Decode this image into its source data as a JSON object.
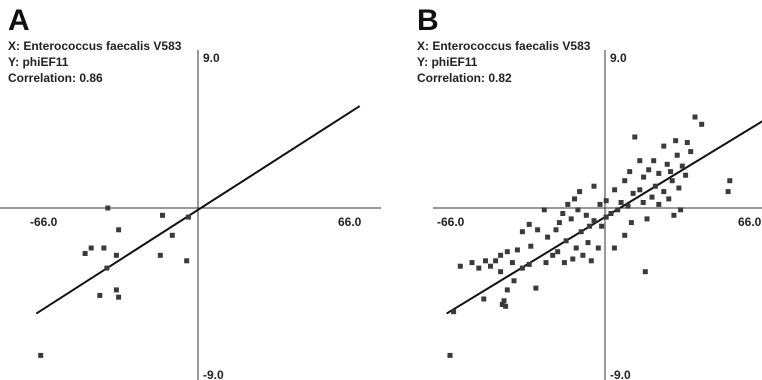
{
  "chart_data": [
    {
      "type": "scatter",
      "panel_label": "A",
      "info": {
        "x_line": "X: Enterococcus faecalis V583",
        "y_line": "Y: phiEF11",
        "correlation": "Correlation: 0.86"
      },
      "tick_labels": {
        "xmin": "-66.0",
        "xmax": "66.0",
        "ymax": "9.0",
        "ymin": "-9.0"
      },
      "xlim": [
        -66,
        66
      ],
      "ylim": [
        -9,
        9
      ],
      "regression": {
        "x": [
          -66,
          66
        ],
        "y": [
          -5.8,
          5.6
        ]
      },
      "points": [
        {
          "x": -36.8,
          "y": 0.0
        },
        {
          "x": -14.5,
          "y": -0.4
        },
        {
          "x": -3.9,
          "y": -0.5
        },
        {
          "x": -32.4,
          "y": -1.2
        },
        {
          "x": -10.5,
          "y": -1.5
        },
        {
          "x": -43.6,
          "y": -2.2
        },
        {
          "x": -38.4,
          "y": -2.2
        },
        {
          "x": -46.1,
          "y": -2.5
        },
        {
          "x": -33.3,
          "y": -2.6
        },
        {
          "x": -15.4,
          "y": -2.6
        },
        {
          "x": -4.6,
          "y": -2.9
        },
        {
          "x": -37.2,
          "y": -3.3
        },
        {
          "x": -33.3,
          "y": -4.5
        },
        {
          "x": -40.1,
          "y": -4.8
        },
        {
          "x": -32.4,
          "y": -4.9
        },
        {
          "x": -64.2,
          "y": -8.1
        }
      ]
    },
    {
      "type": "scatter",
      "panel_label": "B",
      "info": {
        "x_line": "X: Enterococcus faecalis V583",
        "y_line": "Y: phiEF11",
        "correlation": "Correlation: 0.82"
      },
      "tick_labels": {
        "xmin": "-66.0",
        "xmax": "66.0",
        "ymax": "9.0",
        "ymin": "-9.0"
      },
      "xlim": [
        -66,
        66
      ],
      "ylim": [
        -9,
        9
      ],
      "regression": {
        "x": [
          -66,
          66
        ],
        "y": [
          -5.8,
          4.8
        ]
      },
      "points": [
        {
          "x": 37.5,
          "y": 5.0
        },
        {
          "x": 40.3,
          "y": 4.6
        },
        {
          "x": 12.4,
          "y": 3.9
        },
        {
          "x": 34.3,
          "y": 3.6
        },
        {
          "x": 24.5,
          "y": 3.4
        },
        {
          "x": 29.4,
          "y": 3.7
        },
        {
          "x": 35.7,
          "y": 3.1
        },
        {
          "x": 30.1,
          "y": 2.9
        },
        {
          "x": 20.3,
          "y": 2.6
        },
        {
          "x": 25.9,
          "y": 2.4
        },
        {
          "x": 14.5,
          "y": 2.6
        },
        {
          "x": 32.2,
          "y": 2.3
        },
        {
          "x": 18.2,
          "y": 2.1
        },
        {
          "x": 27.3,
          "y": 2.0
        },
        {
          "x": 10.3,
          "y": 2.0
        },
        {
          "x": 22.4,
          "y": 1.9
        },
        {
          "x": 33.6,
          "y": 1.8
        },
        {
          "x": 16.1,
          "y": 1.7
        },
        {
          "x": 28.0,
          "y": 1.5
        },
        {
          "x": 8.2,
          "y": 1.5
        },
        {
          "x": 52.0,
          "y": 1.5
        },
        {
          "x": -4.6,
          "y": 1.2
        },
        {
          "x": 21.0,
          "y": 1.2
        },
        {
          "x": 30.8,
          "y": 1.1
        },
        {
          "x": 14.5,
          "y": 1.0
        },
        {
          "x": 4.0,
          "y": 1.0
        },
        {
          "x": 24.5,
          "y": 0.9
        },
        {
          "x": 51.3,
          "y": 0.9
        },
        {
          "x": -10.6,
          "y": 0.9
        },
        {
          "x": 11.7,
          "y": 0.8
        },
        {
          "x": 19.6,
          "y": 0.6
        },
        {
          "x": 26.6,
          "y": 0.5
        },
        {
          "x": 0.5,
          "y": 0.4
        },
        {
          "x": 15.9,
          "y": 0.3
        },
        {
          "x": -15.5,
          "y": 0.2
        },
        {
          "x": 6.7,
          "y": 0.3
        },
        {
          "x": 22.4,
          "y": 0.2
        },
        {
          "x": 9.6,
          "y": 0.1
        },
        {
          "x": 31.5,
          "y": -0.1
        },
        {
          "x": -12.7,
          "y": 0.5
        },
        {
          "x": 28.7,
          "y": -0.4
        },
        {
          "x": -2.1,
          "y": 0.2
        },
        {
          "x": 2.5,
          "y": -0.3
        },
        {
          "x": -17.6,
          "y": -0.3
        },
        {
          "x": 17.5,
          "y": -0.6
        },
        {
          "x": -7.8,
          "y": -0.4
        },
        {
          "x": 5.3,
          "y": -0.1
        },
        {
          "x": -25.3,
          "y": -0.1
        },
        {
          "x": -11.3,
          "y": -0.1
        },
        {
          "x": 11.0,
          "y": -0.8
        },
        {
          "x": -19.0,
          "y": -0.8
        },
        {
          "x": -4.6,
          "y": -0.7
        },
        {
          "x": 0.5,
          "y": -0.5
        },
        {
          "x": -31.6,
          "y": -0.9
        },
        {
          "x": -14.1,
          "y": -0.6
        },
        {
          "x": -6.4,
          "y": -1.0
        },
        {
          "x": -20.4,
          "y": -1.2
        },
        {
          "x": -9.9,
          "y": -1.3
        },
        {
          "x": 8.2,
          "y": -1.5
        },
        {
          "x": -28.1,
          "y": -1.2
        },
        {
          "x": -1.4,
          "y": -1.0
        },
        {
          "x": -23.9,
          "y": -1.6
        },
        {
          "x": -16.2,
          "y": -1.8
        },
        {
          "x": -34.4,
          "y": -1.3
        },
        {
          "x": -7.1,
          "y": -1.9
        },
        {
          "x": 3.9,
          "y": -2.2
        },
        {
          "x": -12.0,
          "y": -2.2
        },
        {
          "x": -2.8,
          "y": -2.2
        },
        {
          "x": -30.9,
          "y": -2.1
        },
        {
          "x": -19.7,
          "y": -2.4
        },
        {
          "x": -21.8,
          "y": -2.6
        },
        {
          "x": -36.5,
          "y": -2.3
        },
        {
          "x": -9.2,
          "y": -2.6
        },
        {
          "x": -13.4,
          "y": -2.8
        },
        {
          "x": -40.7,
          "y": -2.4
        },
        {
          "x": -16.9,
          "y": -3.0
        },
        {
          "x": -43.5,
          "y": -2.6
        },
        {
          "x": -5.7,
          "y": -2.9
        },
        {
          "x": -45.6,
          "y": -2.9
        },
        {
          "x": -24.6,
          "y": -3.0
        },
        {
          "x": -31.6,
          "y": -3.1
        },
        {
          "x": -38.6,
          "y": -3.0
        },
        {
          "x": -49.8,
          "y": -2.9
        },
        {
          "x": -34.4,
          "y": -3.3
        },
        {
          "x": -47.7,
          "y": -3.2
        },
        {
          "x": -55.4,
          "y": -3.0
        },
        {
          "x": -52.6,
          "y": -3.3
        },
        {
          "x": -43.5,
          "y": -3.5
        },
        {
          "x": -60.3,
          "y": -3.2
        },
        {
          "x": -37.9,
          "y": -4.0
        },
        {
          "x": -40.7,
          "y": -4.5
        },
        {
          "x": -28.8,
          "y": -4.4
        },
        {
          "x": -42.1,
          "y": -5.1
        },
        {
          "x": -42.8,
          "y": -5.3
        },
        {
          "x": -50.5,
          "y": -5.0
        },
        {
          "x": -41.4,
          "y": -5.4
        },
        {
          "x": -63.1,
          "y": -5.7
        },
        {
          "x": -64.6,
          "y": -8.1
        },
        {
          "x": 16.8,
          "y": -3.5
        }
      ]
    }
  ]
}
